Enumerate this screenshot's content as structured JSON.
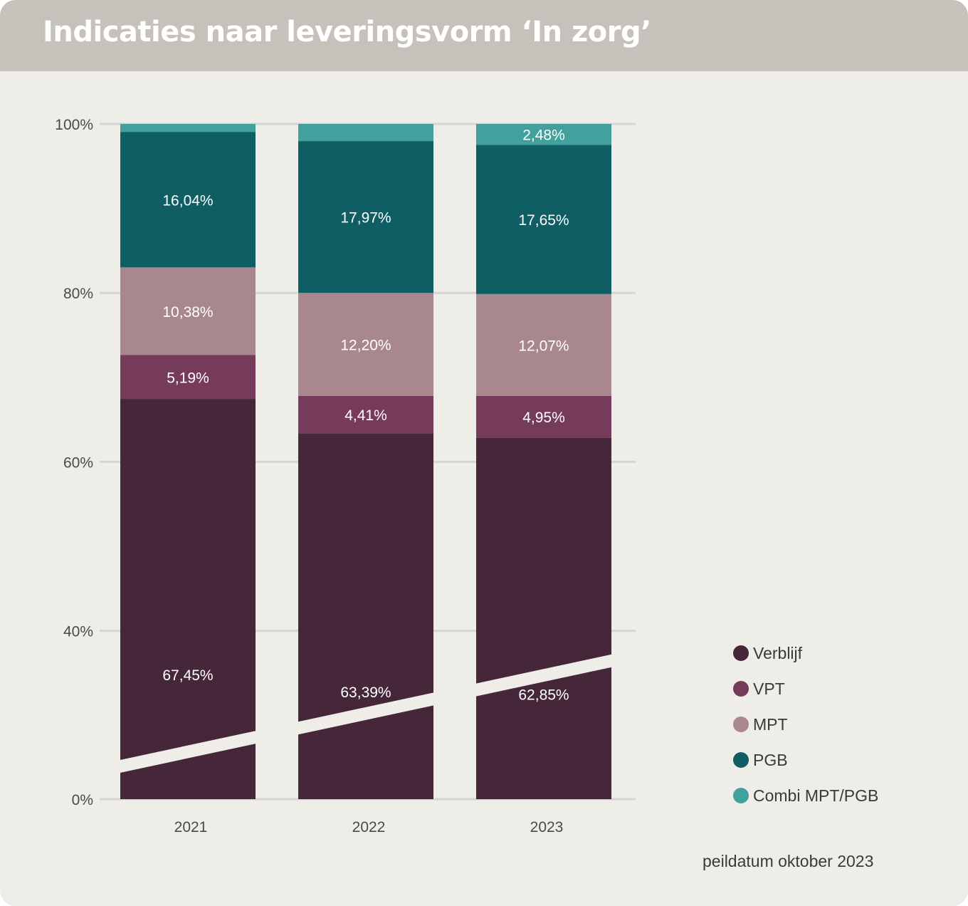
{
  "title": "Indicaties naar leveringsvorm ‘In zorg’",
  "footnote": "peildatum oktober 2023",
  "colors": {
    "Verblijf": "#46273a",
    "VPT": "#763a5b",
    "MPT": "#a8878e",
    "PGB": "#0e5e63",
    "Combi MPT/PGB": "#43a19d"
  },
  "chart_data": {
    "type": "bar",
    "stacked": true,
    "categories": [
      "2021",
      "2022",
      "2023"
    ],
    "y_ticks": [
      "0%",
      "40%",
      "60%",
      "80%",
      "100%"
    ],
    "axis_break": true,
    "series": [
      {
        "name": "Verblijf",
        "values": [
          67.45,
          63.39,
          62.85
        ],
        "labels": [
          "67,45%",
          "63,39%",
          "62,85%"
        ]
      },
      {
        "name": "VPT",
        "values": [
          5.19,
          4.41,
          4.95
        ],
        "labels": [
          "5,19%",
          "4,41%",
          "4,95%"
        ]
      },
      {
        "name": "MPT",
        "values": [
          10.38,
          12.2,
          12.07
        ],
        "labels": [
          "10,38%",
          "12,20%",
          "12,07%"
        ]
      },
      {
        "name": "PGB",
        "values": [
          16.04,
          17.97,
          17.65
        ],
        "labels": [
          "16,04%",
          "17,97%",
          "17,65%"
        ]
      },
      {
        "name": "Combi MPT/PGB",
        "values": [
          0.94,
          2.03,
          2.48
        ],
        "labels": [
          "",
          "",
          "2,48%"
        ]
      }
    ],
    "legend": [
      "Verblijf",
      "VPT",
      "MPT",
      "PGB",
      "Combi MPT/PGB"
    ],
    "legend_position": "bottom-right",
    "grid": true
  }
}
